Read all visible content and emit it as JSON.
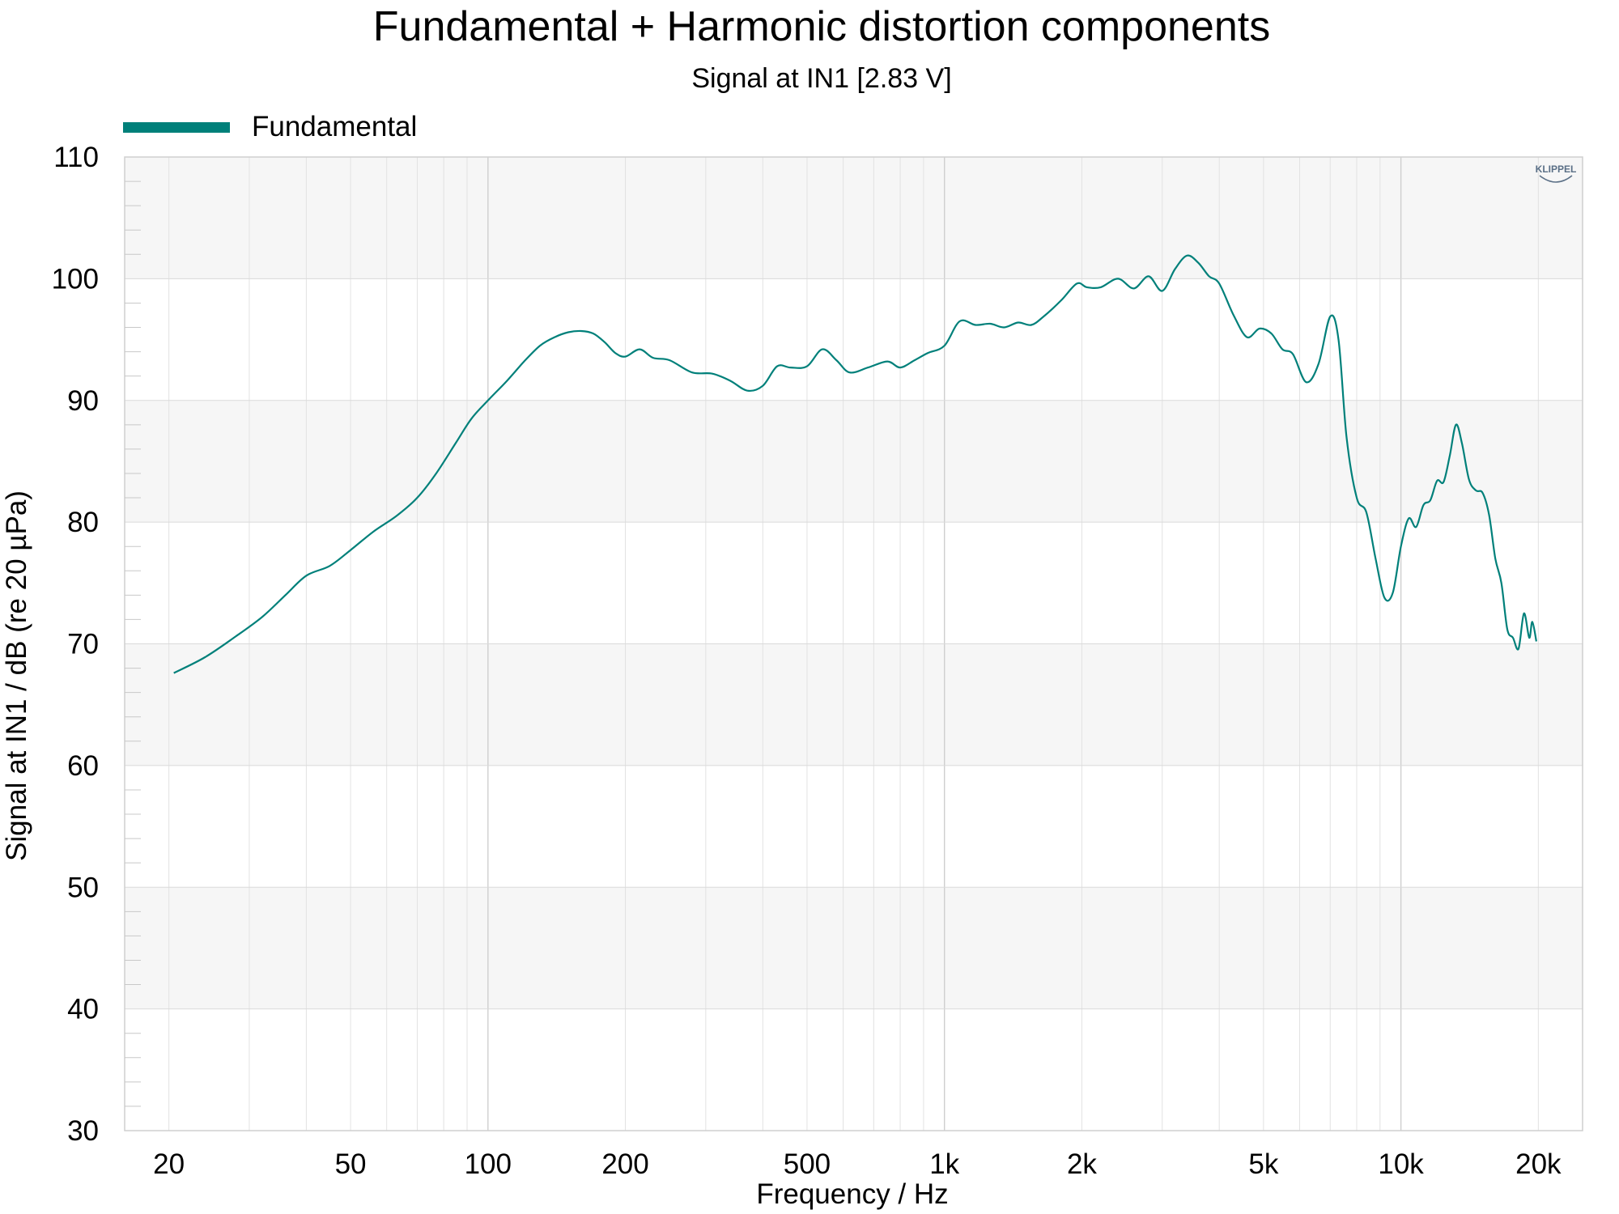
{
  "chart_data": {
    "type": "line",
    "title": "Fundamental + Harmonic distortion components",
    "subtitle": "Signal at IN1 [2.83 V]",
    "xlabel": "Frequency / Hz",
    "ylabel": "Signal at IN1 / dB (re 20 µPa)",
    "xscale": "log",
    "xlim": [
      16,
      25000
    ],
    "ylim": [
      30,
      110
    ],
    "x_ticks": [
      20,
      50,
      100,
      200,
      500,
      1000,
      2000,
      5000,
      10000,
      20000
    ],
    "x_tick_labels": [
      "20",
      "50",
      "100",
      "200",
      "500",
      "1k",
      "2k",
      "5k",
      "10k",
      "20k"
    ],
    "y_ticks": [
      30,
      40,
      50,
      60,
      70,
      80,
      90,
      100,
      110
    ],
    "y_tick_labels": [
      "30",
      "40",
      "50",
      "60",
      "70",
      "80",
      "90",
      "100",
      "110"
    ],
    "grid": true,
    "legend_position": "top-left",
    "logo": "KLIPPEL",
    "series": [
      {
        "name": "Fundamental",
        "color": "#00807a",
        "x": [
          20.5,
          24,
          28,
          32,
          36,
          40,
          45,
          50,
          56,
          63,
          70,
          77,
          85,
          92,
          100,
          110,
          120,
          130,
          140,
          150,
          160,
          170,
          180,
          190,
          200,
          215,
          230,
          250,
          280,
          310,
          340,
          370,
          400,
          430,
          460,
          500,
          540,
          580,
          620,
          680,
          750,
          800,
          860,
          920,
          1000,
          1080,
          1170,
          1260,
          1350,
          1450,
          1550,
          1650,
          1800,
          1950,
          2050,
          2200,
          2400,
          2600,
          2800,
          3000,
          3200,
          3400,
          3600,
          3800,
          4000,
          4300,
          4600,
          4900,
          5200,
          5500,
          5800,
          6200,
          6600,
          7000,
          7300,
          7600,
          8000,
          8400,
          8800,
          9200,
          9600,
          10000,
          10400,
          10800,
          11200,
          11600,
          12000,
          12400,
          12800,
          13200,
          13600,
          14100,
          14600,
          15100,
          15600,
          16100,
          16600,
          17100,
          17600,
          18100,
          18600,
          19100,
          19400,
          19800
        ],
        "y": [
          67.6,
          68.9,
          70.6,
          72.2,
          74,
          75.6,
          76.4,
          77.7,
          79.2,
          80.5,
          82,
          84,
          86.5,
          88.5,
          90,
          91.6,
          93.2,
          94.5,
          95.2,
          95.6,
          95.7,
          95.5,
          94.8,
          93.9,
          93.6,
          94.2,
          93.5,
          93.3,
          92.3,
          92.2,
          91.6,
          90.8,
          91.2,
          92.8,
          92.7,
          92.8,
          94.2,
          93.3,
          92.3,
          92.7,
          93.2,
          92.7,
          93.3,
          93.9,
          94.5,
          96.5,
          96.2,
          96.3,
          96,
          96.4,
          96.2,
          96.9,
          98.2,
          99.6,
          99.3,
          99.3,
          100,
          99.2,
          100.2,
          99,
          100.8,
          101.9,
          101.3,
          100.2,
          99.6,
          97,
          95.2,
          95.9,
          95.5,
          94.2,
          93.8,
          91.5,
          93,
          96.9,
          95,
          87,
          82,
          80.8,
          77,
          73.8,
          74.2,
          78,
          80.3,
          79.6,
          81.4,
          81.8,
          83.4,
          83.3,
          85.5,
          88,
          86.5,
          83.5,
          82.6,
          82.4,
          80.6,
          77,
          75,
          71.2,
          70.5,
          69.6,
          72.5,
          70.5,
          71.8,
          70.2
        ]
      }
    ]
  }
}
